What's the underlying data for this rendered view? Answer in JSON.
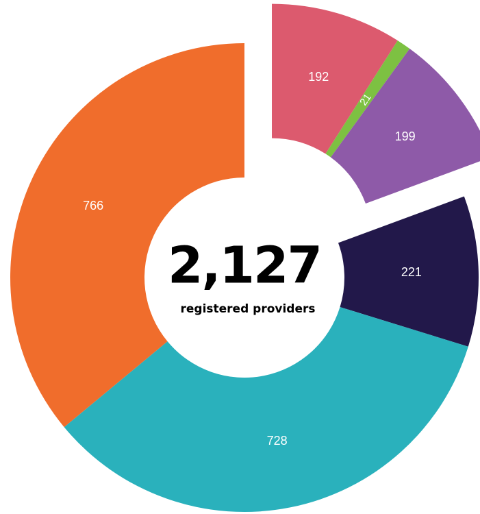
{
  "chart_data": {
    "type": "donut",
    "categories": [
      null,
      null,
      null,
      null,
      null,
      null
    ],
    "values": [
      192,
      21,
      199,
      221,
      728,
      766
    ],
    "colors": [
      "#dc5a6e",
      "#7dc142",
      "#8e5aa8",
      "#22184a",
      "#2ab1bc",
      "#f06d2c"
    ],
    "explode": [
      true,
      true,
      true,
      false,
      false,
      false
    ],
    "center_text": "2,127",
    "center_subtext": "registered providers"
  }
}
